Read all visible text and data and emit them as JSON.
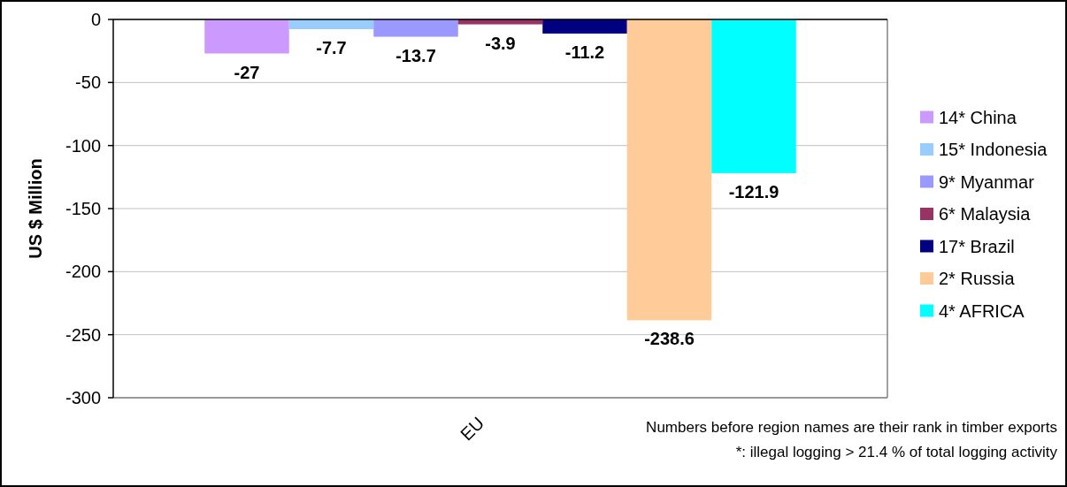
{
  "chart_data": {
    "type": "bar",
    "ylabel": "US $ Million",
    "categories": [
      "EU"
    ],
    "series": [
      {
        "name": "14* China",
        "color": "#cc99ff",
        "values": [
          -27
        ]
      },
      {
        "name": "15* Indonesia",
        "color": "#99ccff",
        "values": [
          -7.7
        ]
      },
      {
        "name": "9* Myanmar",
        "color": "#9999ff",
        "values": [
          -13.7
        ]
      },
      {
        "name": "6* Malaysia",
        "color": "#993366",
        "values": [
          -3.9
        ]
      },
      {
        "name": "17* Brazil",
        "color": "#000080",
        "values": [
          -11.2
        ]
      },
      {
        "name": "2* Russia",
        "color": "#ffcc99",
        "values": [
          -238.6
        ]
      },
      {
        "name": "4* AFRICA",
        "color": "#00ffff",
        "values": [
          -121.9
        ]
      }
    ],
    "ylim": [
      -300,
      0
    ],
    "yticks": [
      -300,
      -250,
      -200,
      -150,
      -100,
      -50,
      0
    ],
    "grid": "y",
    "legend": "right",
    "data_labels": true,
    "annotations": [
      "Numbers before region names are their rank in timber exports",
      "*: illegal logging > 21.4 % of total logging activity"
    ]
  }
}
